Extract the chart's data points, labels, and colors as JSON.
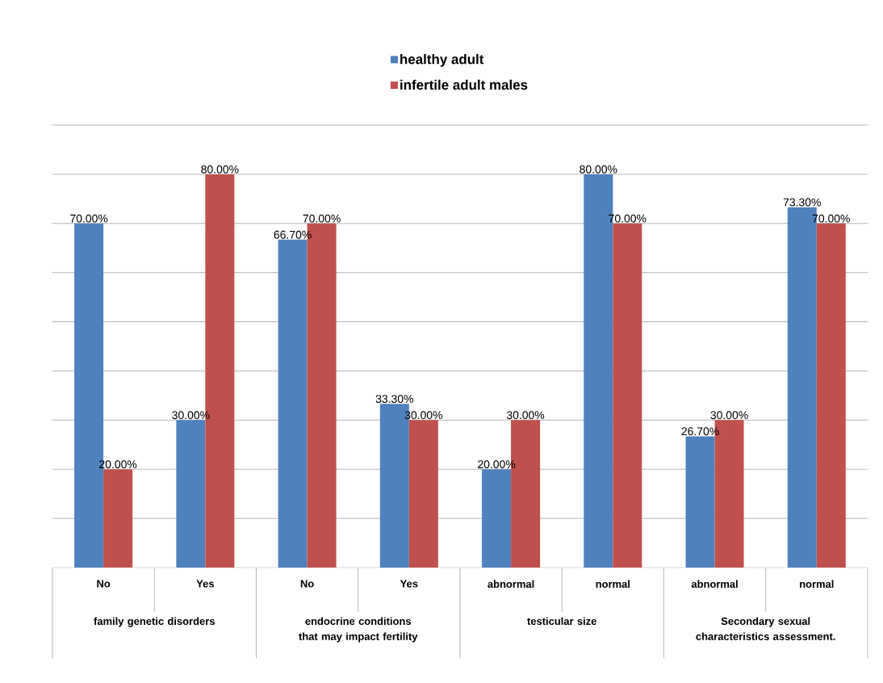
{
  "chart_data": {
    "type": "bar",
    "categories": [
      "No",
      "Yes",
      "No",
      "Yes",
      "abnormal",
      "normal",
      "abnormal",
      "normal"
    ],
    "series": [
      {
        "name": "healthy adult",
        "color": "#4f81bd",
        "values": [
          70,
          30,
          66.7,
          33.3,
          20,
          80,
          26.7,
          73.3
        ],
        "value_labels": [
          "70.00%",
          "30.00%",
          "66.70%",
          "33.30%",
          "20.00%",
          "80.00%",
          "26.70%",
          "73.30%"
        ]
      },
      {
        "name": "infertile adult males",
        "color": "#c0504d",
        "values": [
          20,
          80,
          70,
          30,
          30,
          70,
          30,
          70
        ],
        "value_labels": [
          "20.00%",
          "80.00%",
          "70.00%",
          "30.00%",
          "30.00%",
          "70.00%",
          "30.00%",
          "70.00%"
        ]
      }
    ],
    "annotations": [
      "family genetic disorders",
      "endocrine conditions that may impact fertility",
      "testicular size",
      "Secondary sexual characteristics assessment."
    ],
    "ylim": [
      0,
      90
    ],
    "yticks": [
      {
        "value": 10,
        "label": null
      },
      {
        "value": 20,
        "label": null
      },
      {
        "value": 30,
        "label": null
      },
      {
        "value": 40,
        "label": null
      },
      {
        "value": 50,
        "label": null
      },
      {
        "value": 60,
        "label": null
      },
      {
        "value": 70,
        "label": null
      },
      {
        "value": 80,
        "label": null
      },
      {
        "value": 90,
        "label": null
      }
    ],
    "tick_labels": "x",
    "grid": "y",
    "legend": "top"
  }
}
